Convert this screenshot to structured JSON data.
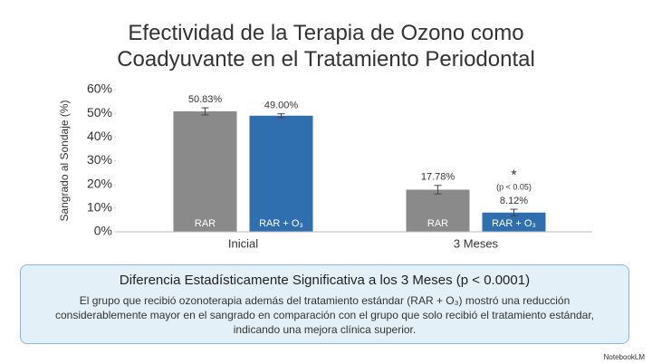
{
  "chart_data": {
    "type": "bar",
    "title": "Efectividad de la Terapia de Ozono como Coadyuvante en el Tratamiento Periodontal",
    "ylabel": "Sangrado al Sondaje (%)",
    "categories": [
      "Inicial",
      "3 Meses"
    ],
    "series": [
      {
        "name": "RAR",
        "color": "#8a8a8a",
        "values": [
          50.83,
          17.78
        ],
        "value_labels": [
          "50.83%",
          "17.78%"
        ],
        "errors": [
          1.5,
          1.8
        ]
      },
      {
        "name": "RAR + O₃",
        "color": "#2f6fb0",
        "values": [
          49.0,
          8.12
        ],
        "value_labels": [
          "49.00%",
          "8.12%"
        ],
        "errors": [
          0.8,
          1.4
        ]
      }
    ],
    "annotations": [
      "*",
      "(p < 0.05)"
    ],
    "ylim": [
      0,
      60
    ],
    "yticks": [
      {
        "value": 0,
        "label": "0%"
      },
      {
        "value": 10,
        "label": "10%"
      },
      {
        "value": 20,
        "label": "20%"
      },
      {
        "value": 30,
        "label": "30%"
      },
      {
        "value": 40,
        "label": "40%"
      },
      {
        "value": 50,
        "label": "50%"
      },
      {
        "value": 60,
        "label": "60%"
      }
    ],
    "grid": false
  },
  "callout": {
    "title": "Diferencia Estadísticamente Significativa a los 3 Meses (p < 0.0001)",
    "text": "El grupo que recibió ozonoterapia además del tratamiento estándar (RAR + O₃) mostró una reducción considerablemente mayor en el sangrado en comparación con el grupo que solo recibió el tratamiento estándar, indicando una mejora clínica superior."
  },
  "footer": "NotebookLM"
}
